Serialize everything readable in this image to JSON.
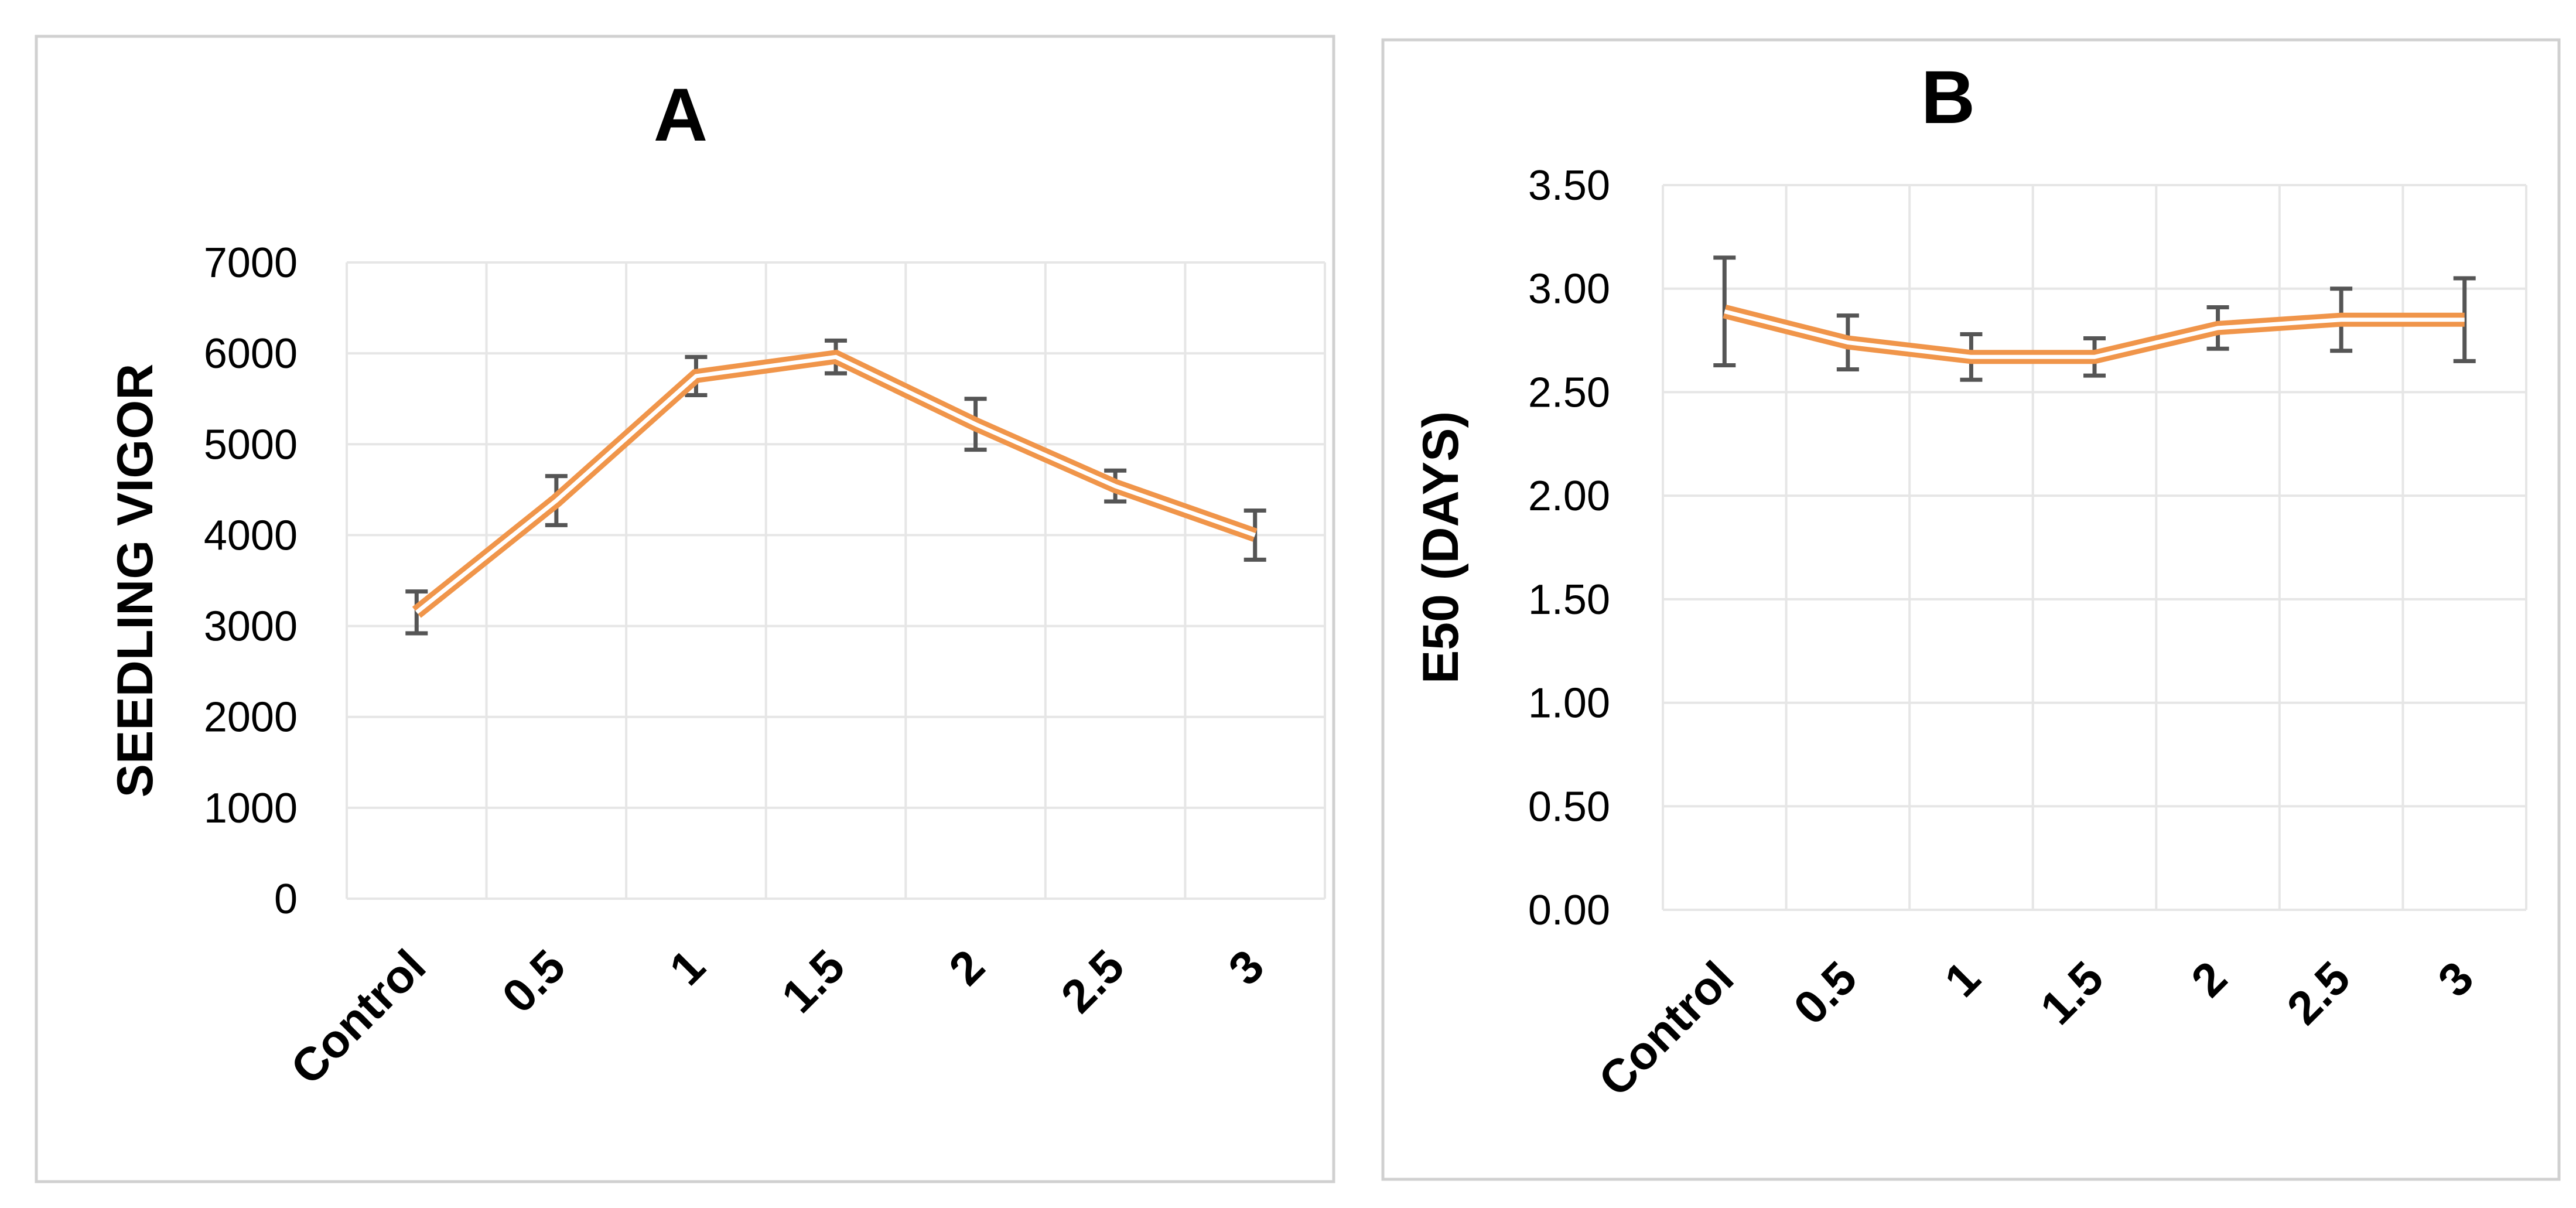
{
  "colors": {
    "line": "#f0954a",
    "error_bar": "#555555",
    "grid": "#e6e6e6",
    "frame": "#d0d0d0"
  },
  "chart_data": [
    {
      "type": "line",
      "title": "A",
      "xlabel": "",
      "ylabel": "SEEDLING VIGOR",
      "categories": [
        "Control",
        "0.5",
        "1",
        "1.5",
        "2",
        "2.5",
        "3"
      ],
      "values": [
        3150,
        4380,
        5750,
        5960,
        5220,
        4540,
        4000
      ],
      "errors": [
        230,
        270,
        210,
        180,
        280,
        170,
        270
      ],
      "ylim": [
        0,
        7000
      ],
      "yticks": [
        "0",
        "1000",
        "2000",
        "3000",
        "4000",
        "5000",
        "6000",
        "7000"
      ],
      "grid": true
    },
    {
      "type": "line",
      "title": "B",
      "xlabel": "",
      "ylabel": "E50 (DAYS)",
      "categories": [
        "Control",
        "0.5",
        "1",
        "1.5",
        "2",
        "2.5",
        "3"
      ],
      "values": [
        2.89,
        2.74,
        2.67,
        2.67,
        2.81,
        2.85,
        2.85
      ],
      "errors": [
        0.26,
        0.13,
        0.11,
        0.09,
        0.1,
        0.15,
        0.2
      ],
      "ylim": [
        0,
        3.5
      ],
      "yticks": [
        "0.00",
        "0.50",
        "1.00",
        "1.50",
        "2.00",
        "2.50",
        "3.00",
        "3.50"
      ],
      "grid": true
    }
  ]
}
